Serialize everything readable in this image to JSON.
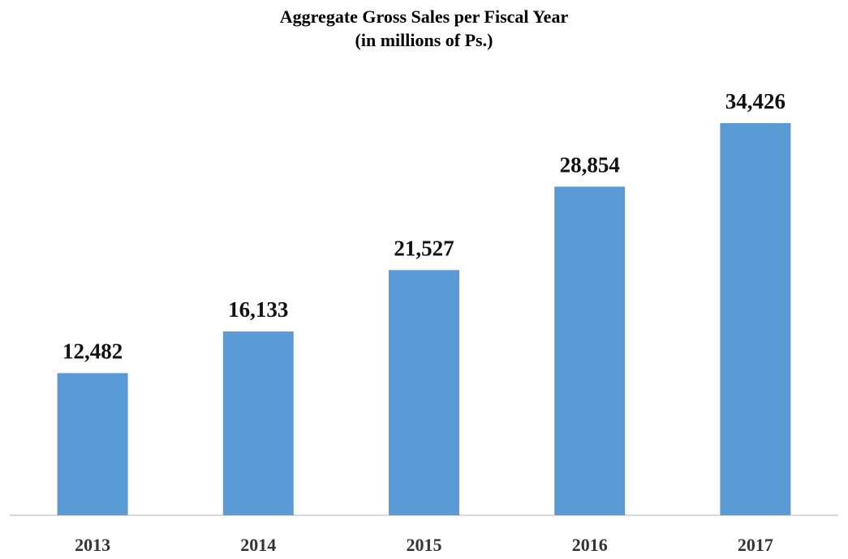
{
  "chart_data": {
    "type": "bar",
    "title": "Aggregate Gross Sales per Fiscal Year",
    "subtitle": "(in millions of Ps.)",
    "categories": [
      "2013",
      "2014",
      "2015",
      "2016",
      "2017"
    ],
    "values": [
      12482,
      16133,
      21527,
      28854,
      34426
    ],
    "value_labels": [
      "12,482",
      "16,133",
      "21,527",
      "28,854",
      "34,426"
    ],
    "xlabel": "",
    "ylabel": "",
    "ylim": [
      0,
      40000
    ],
    "y_axis_visible": false,
    "grid": false,
    "legend": "none",
    "bar_color": "#5b9bd5",
    "baseline_color": "#d9d9d9"
  }
}
